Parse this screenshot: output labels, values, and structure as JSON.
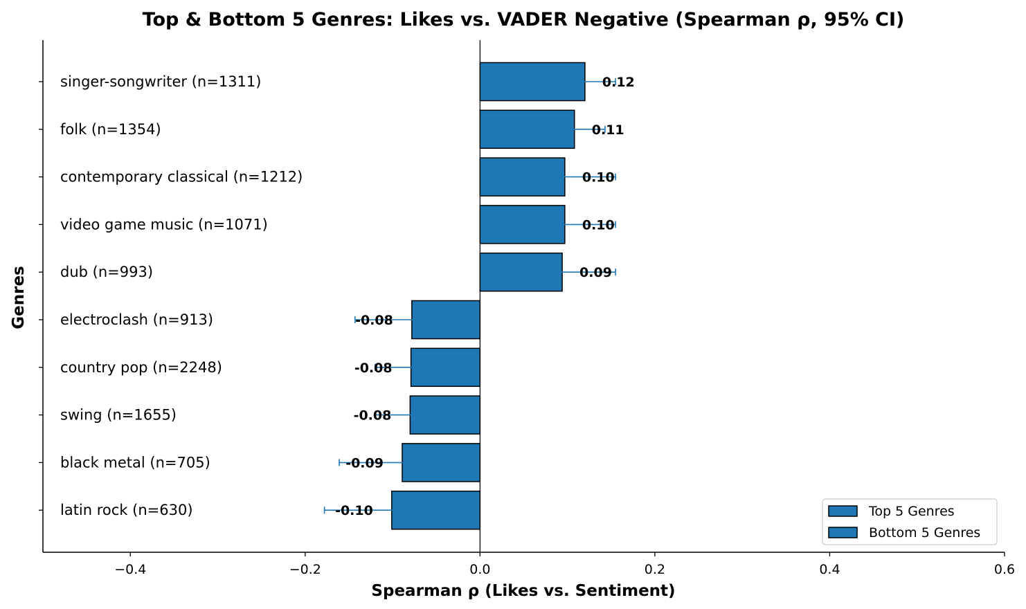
{
  "chart_data": {
    "type": "bar",
    "orientation": "horizontal",
    "title": "Top & Bottom 5 Genres: Likes vs. VADER Negative (Spearman ρ, 95% CI)",
    "xlabel": "Spearman ρ (Likes vs. Sentiment)",
    "ylabel": "Genres",
    "xlim": [
      -0.5,
      0.6
    ],
    "xticks": [
      -0.4,
      -0.2,
      0.0,
      0.2,
      0.4,
      0.6
    ],
    "xtick_labels": [
      "−0.4",
      "−0.2",
      "0.0",
      "0.2",
      "0.4",
      "0.6"
    ],
    "grid": false,
    "legend_position": "bottom-right",
    "legend": [
      {
        "label": "Top 5 Genres",
        "color": "#1f77b4"
      },
      {
        "label": "Bottom 5 Genres",
        "color": "#1f77b4"
      }
    ],
    "bar_color": "#1f77b4",
    "errorbar_color": "#1f77b4",
    "categories": [
      "singer-songwriter (n=1311)",
      "folk (n=1354)",
      "contemporary classical (n=1212)",
      "video game music (n=1071)",
      "dub (n=993)",
      "electroclash (n=913)",
      "country pop (n=2248)",
      "swing (n=1655)",
      "black metal (n=705)",
      "latin rock (n=630)"
    ],
    "values": [
      0.12,
      0.108,
      0.097,
      0.097,
      0.094,
      -0.078,
      -0.079,
      -0.08,
      -0.089,
      -0.101
    ],
    "value_labels": [
      "0.12",
      "0.11",
      "0.10",
      "0.10",
      "0.09",
      "-0.08",
      "-0.08",
      "-0.08",
      "-0.09",
      "-0.10"
    ],
    "ci_low": [
      0.085,
      0.073,
      0.06,
      0.06,
      0.03,
      -0.143,
      -0.12,
      -0.12,
      -0.161,
      -0.178
    ],
    "ci_high": [
      0.155,
      0.143,
      0.155,
      0.155,
      0.155,
      -0.013,
      -0.04,
      -0.04,
      -0.017,
      -0.024
    ],
    "group": [
      "top",
      "top",
      "top",
      "top",
      "top",
      "bottom",
      "bottom",
      "bottom",
      "bottom",
      "bottom"
    ]
  }
}
